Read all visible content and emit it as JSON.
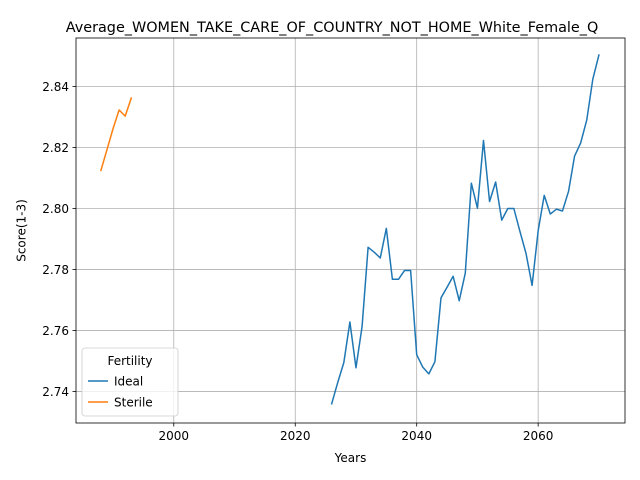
{
  "chart_data": {
    "type": "line",
    "title": "Average_WOMEN_TAKE_CARE_OF_COUNTRY_NOT_HOME_White_Female_Q",
    "xlabel": "Years",
    "ylabel": "Score(1-3)",
    "xlim": [
      1983.9,
      2074.3
    ],
    "ylim": [
      2.7297,
      2.8559
    ],
    "xticks": [
      2000,
      2020,
      2040,
      2060
    ],
    "yticks": [
      2.74,
      2.76,
      2.78,
      2.8,
      2.82,
      2.84
    ],
    "ytick_labels": [
      "2.74",
      "2.76",
      "2.78",
      "2.80",
      "2.82",
      "2.84"
    ],
    "grid": true,
    "legend": {
      "title": "Fertility",
      "placement": "lower-left"
    },
    "series": [
      {
        "name": "Ideal",
        "color": "#1f77b4",
        "x": [
          2026,
          2027,
          2028,
          2029,
          2030,
          2031,
          2032,
          2033,
          2034,
          2035,
          2036,
          2037,
          2038,
          2039,
          2040,
          2041,
          2042,
          2043,
          2044,
          2045,
          2046,
          2047,
          2048,
          2049,
          2050,
          2051,
          2052,
          2053,
          2054,
          2055,
          2056,
          2057,
          2058,
          2059,
          2060,
          2061,
          2062,
          2063,
          2064,
          2065,
          2066,
          2067,
          2068,
          2069,
          2070
        ],
        "y": [
          2.736,
          2.743,
          2.7495,
          2.7628,
          2.7478,
          2.7612,
          2.7873,
          2.7857,
          2.7838,
          2.7935,
          2.7768,
          2.7768,
          2.7797,
          2.7797,
          2.7521,
          2.748,
          2.7458,
          2.7498,
          2.7707,
          2.7742,
          2.7778,
          2.7698,
          2.7788,
          2.8083,
          2.8001,
          2.8223,
          2.8023,
          2.8087,
          2.7962,
          2.8,
          2.8,
          2.7925,
          2.7853,
          2.7748,
          2.7927,
          2.8043,
          2.7982,
          2.7998,
          2.7992,
          2.8056,
          2.8172,
          2.8215,
          2.829,
          2.8424,
          2.8503
        ]
      },
      {
        "name": "Sterile",
        "color": "#ff7f0e",
        "x": [
          1988,
          1989,
          1990,
          1991,
          1992,
          1993
        ],
        "y": [
          2.8125,
          2.8193,
          2.8262,
          2.8323,
          2.8303,
          2.8362
        ]
      }
    ]
  }
}
